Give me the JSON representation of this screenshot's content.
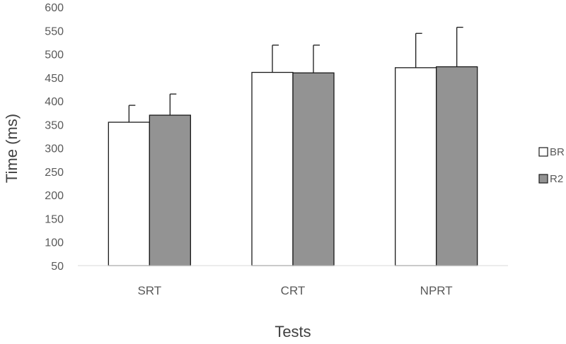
{
  "chart_data": {
    "type": "bar",
    "title": "",
    "xlabel": "Tests",
    "ylabel": "Time  (ms)",
    "ylim": [
      50,
      600
    ],
    "yticks": [
      50,
      100,
      150,
      200,
      250,
      300,
      350,
      400,
      450,
      500,
      550,
      600
    ],
    "grid": false,
    "legend_position": "right",
    "categories": [
      "SRT",
      "CRT",
      "NPRT"
    ],
    "series": [
      {
        "name": "BR",
        "color": "#ffffff",
        "values": [
          355,
          461,
          471
        ],
        "errors": [
          36,
          58,
          73
        ]
      },
      {
        "name": "R2",
        "color": "#939393",
        "values": [
          370,
          460,
          473
        ],
        "errors": [
          45,
          59,
          84
        ]
      }
    ]
  }
}
